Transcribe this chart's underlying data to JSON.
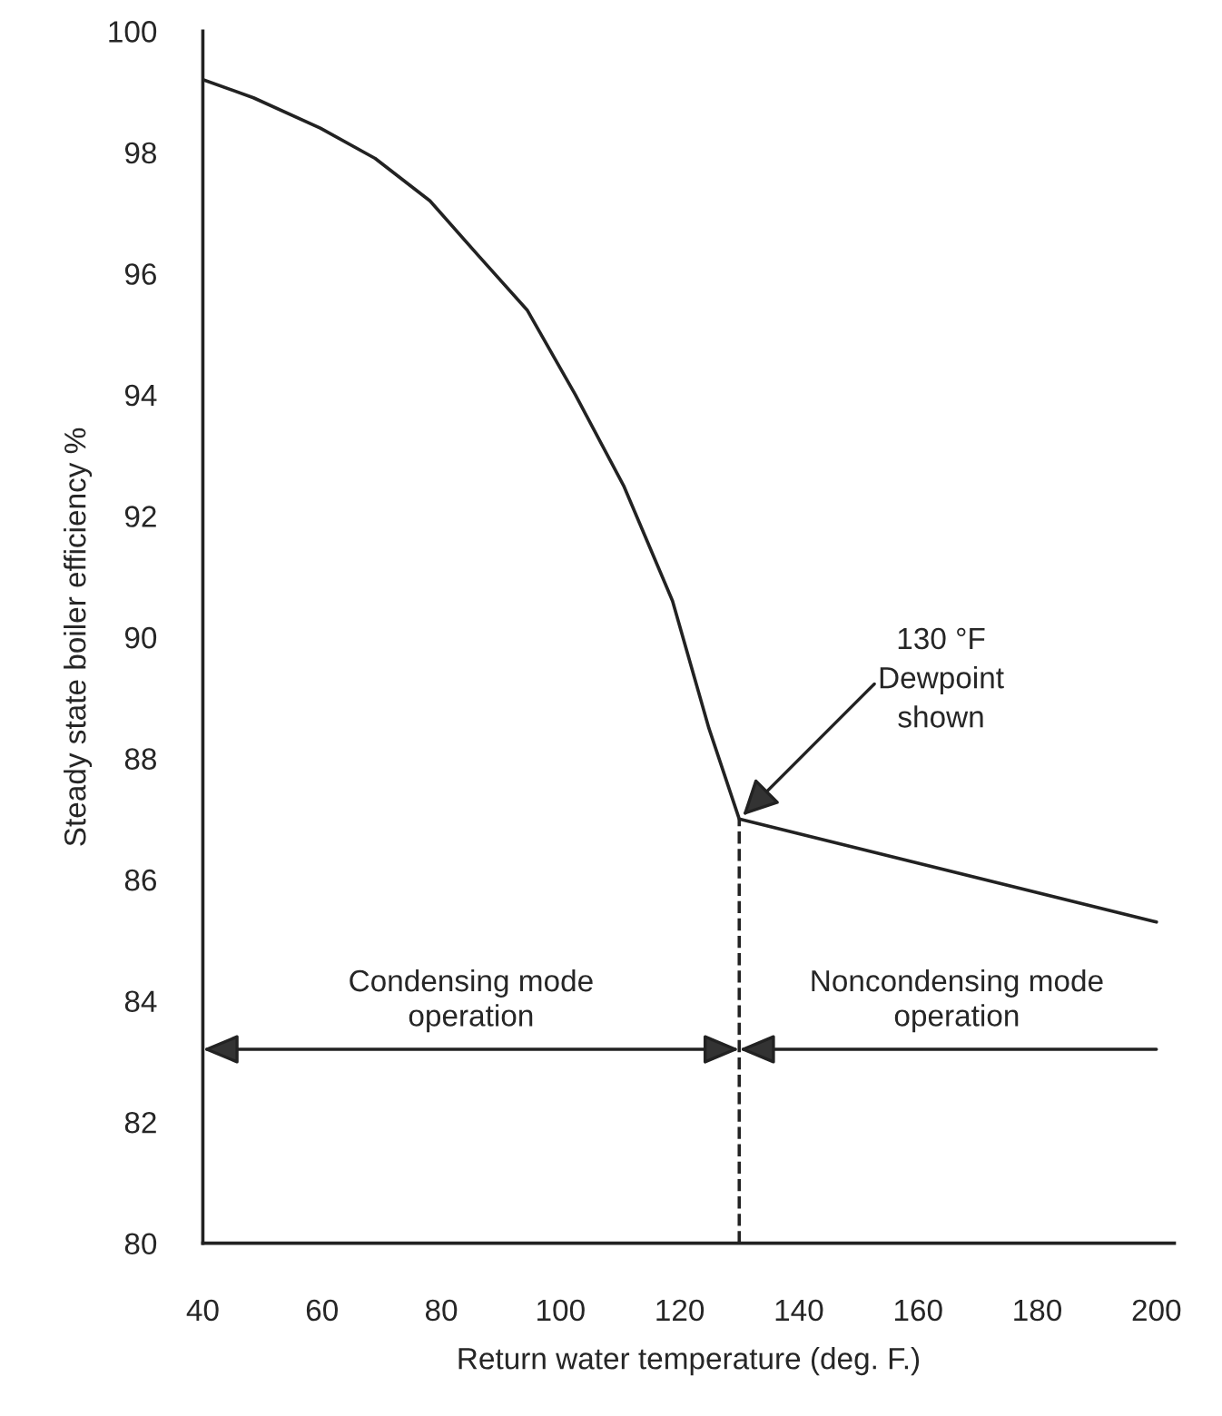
{
  "chart_data": {
    "type": "line",
    "xlabel": "Return water temperature (deg. F.)",
    "ylabel": "Steady state boiler efficiency %",
    "x": [
      40,
      48.5,
      59.7,
      68.9,
      78.1,
      86.2,
      94.4,
      102.5,
      110.6,
      118.8,
      124.9,
      130,
      200
    ],
    "series": [
      {
        "color": "#222222",
        "values": [
          99.2,
          98.9,
          98.4,
          97.9,
          97.2,
          96.3,
          95.4,
          94.0,
          92.5,
          90.6,
          88.5,
          87.0,
          85.3
        ]
      }
    ],
    "xlim": [
      40,
      203
    ],
    "xticks": [
      40,
      60,
      80,
      100,
      120,
      140,
      160,
      180,
      200
    ],
    "ylim": [
      80,
      100
    ],
    "yticks": [
      80,
      82,
      84,
      86,
      88,
      90,
      92,
      94,
      96,
      98,
      100
    ],
    "ref_lines": [
      {
        "axis": "x",
        "value": 130,
        "line_style": "dashed",
        "color": "#222222"
      }
    ],
    "annotations": [
      {
        "text": "130 °F\nDewpoint\nshown",
        "x": 130,
        "y": 87.0
      },
      "Condensing mode\noperation",
      "Noncondensing mode\noperation"
    ],
    "grid": false,
    "legend": false,
    "marker": "none",
    "line_style": "solid"
  }
}
